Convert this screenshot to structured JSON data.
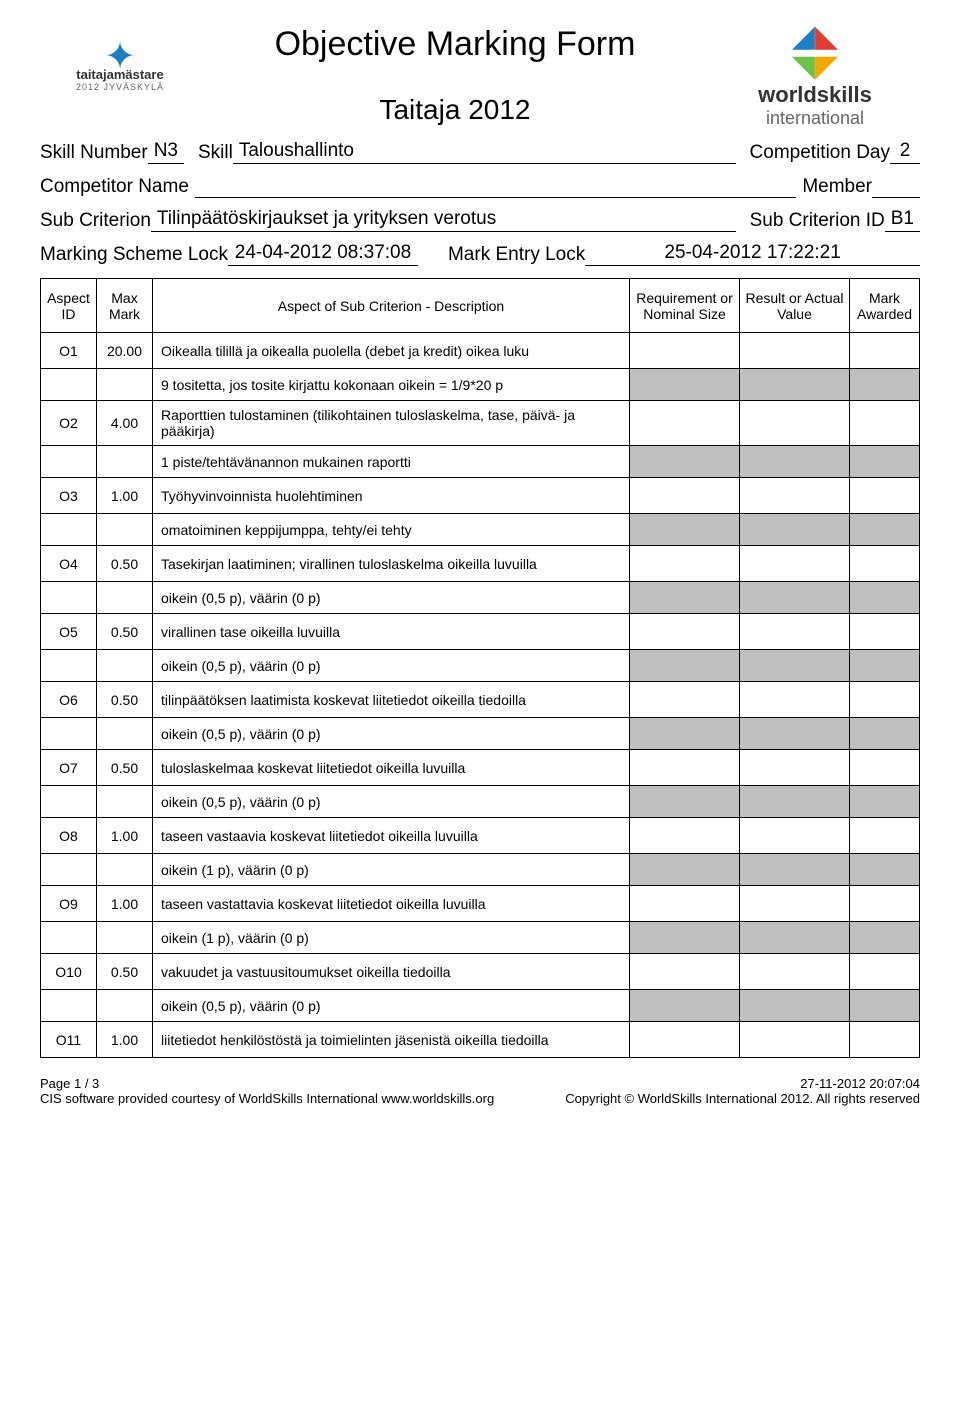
{
  "title": "Objective Marking Form",
  "subtitle": "Taitaja 2012",
  "logo_left": {
    "line1": "taitajamästare",
    "line2": "2012 JYVÄSKYLÄ"
  },
  "logo_right": {
    "line1": "worldskills",
    "line2": "international"
  },
  "meta": {
    "skill_number_label": "Skill Number",
    "skill_number": "N3",
    "skill_label": "Skill",
    "skill": "Taloushallinto",
    "comp_day_label": "Competition Day",
    "comp_day": "2",
    "competitor_label": "Competitor Name",
    "member_label": "Member",
    "subcrit_label": "Sub Criterion",
    "subcrit": "Tilinpäätöskirjaukset ja yrityksen verotus",
    "subcrit_id_label": "Sub Criterion ID",
    "subcrit_id": "B1",
    "lock1_label": "Marking Scheme Lock",
    "lock1": "24-04-2012  08:37:08",
    "lock2_label": "Mark Entry Lock",
    "lock2": "25-04-2012  17:22:21"
  },
  "headers": {
    "id": "Aspect ID",
    "max": "Max Mark",
    "desc": "Aspect of Sub Criterion - Description",
    "req": "Requirement or Nominal Size",
    "res": "Result or Actual Value",
    "mark": "Mark Awarded"
  },
  "rows": [
    {
      "t": "a",
      "id": "O1",
      "max": "20.00",
      "desc": "Oikealla tilillä ja oikealla puolella (debet ja kredit) oikea luku"
    },
    {
      "t": "s",
      "desc": "9 tositetta, jos tosite kirjattu kokonaan oikein = 1/9*20 p"
    },
    {
      "t": "a",
      "id": "O2",
      "max": "4.00",
      "desc": "Raporttien tulostaminen (tilikohtainen tuloslaskelma, tase, päivä- ja pääkirja)"
    },
    {
      "t": "s",
      "desc": "1 piste/tehtävänannon mukainen raportti"
    },
    {
      "t": "a",
      "id": "O3",
      "max": "1.00",
      "desc": "Työhyvinvoinnista huolehtiminen"
    },
    {
      "t": "s",
      "desc": "omatoiminen keppijumppa, tehty/ei tehty"
    },
    {
      "t": "a",
      "id": "O4",
      "max": "0.50",
      "desc": "Tasekirjan laatiminen; virallinen tuloslaskelma oikeilla luvuilla"
    },
    {
      "t": "s",
      "desc": "oikein (0,5 p), väärin (0 p)"
    },
    {
      "t": "a",
      "id": "O5",
      "max": "0.50",
      "desc": "virallinen tase oikeilla luvuilla"
    },
    {
      "t": "s",
      "desc": "oikein (0,5 p), väärin (0 p)"
    },
    {
      "t": "a",
      "id": "O6",
      "max": "0.50",
      "desc": "tilinpäätöksen laatimista koskevat liitetiedot oikeilla tiedoilla"
    },
    {
      "t": "s",
      "desc": "oikein (0,5 p), väärin (0 p)"
    },
    {
      "t": "a",
      "id": "O7",
      "max": "0.50",
      "desc": "tuloslaskelmaa koskevat liitetiedot oikeilla luvuilla"
    },
    {
      "t": "s",
      "desc": "oikein (0,5 p), väärin (0 p)"
    },
    {
      "t": "a",
      "id": "O8",
      "max": "1.00",
      "desc": "taseen vastaavia koskevat liitetiedot oikeilla luvuilla"
    },
    {
      "t": "s",
      "desc": "oikein (1 p), väärin (0 p)"
    },
    {
      "t": "a",
      "id": "O9",
      "max": "1.00",
      "desc": "taseen vastattavia koskevat liitetiedot oikeilla luvuilla"
    },
    {
      "t": "s",
      "desc": "oikein (1 p), väärin (0 p)"
    },
    {
      "t": "a",
      "id": "O10",
      "max": "0.50",
      "desc": "vakuudet ja vastuusitoumukset oikeilla tiedoilla"
    },
    {
      "t": "s",
      "desc": "oikein (0,5 p), väärin (0 p)"
    },
    {
      "t": "a",
      "id": "O11",
      "max": "1.00",
      "desc": "liitetiedot henkilöstöstä ja toimielinten jäsenistä oikeilla tiedoilla"
    }
  ],
  "footer": {
    "page": "Page 1 / 3",
    "timestamp": "27-11-2012  20:07:04",
    "credit": "CIS software provided courtesy of WorldSkills International www.worldskills.org",
    "copyright": "Copyright © WorldSkills International 2012. All rights reserved"
  }
}
